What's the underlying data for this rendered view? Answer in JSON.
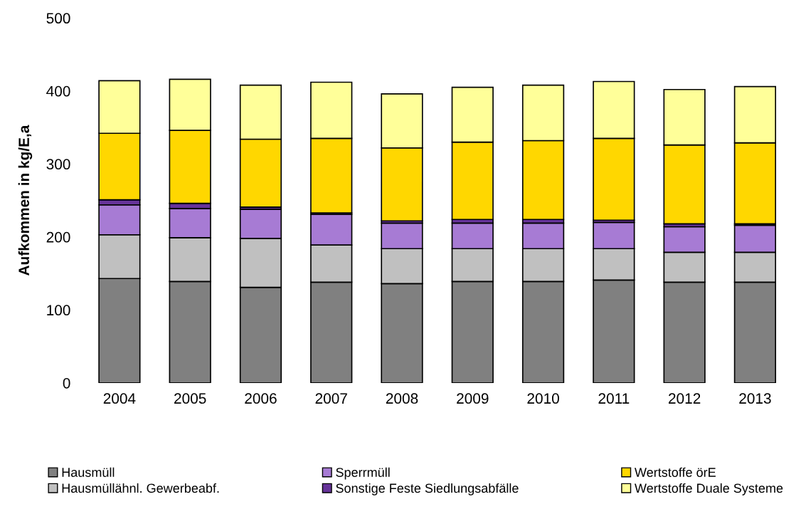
{
  "chart_data": {
    "type": "bar",
    "stacked": true,
    "ylabel": "Aufkommen in kg/E,a",
    "categories": [
      "2004",
      "2005",
      "2006",
      "2007",
      "2008",
      "2009",
      "2010",
      "2011",
      "2012",
      "2013"
    ],
    "series": [
      {
        "name": "Hausmüll",
        "color": "#808080",
        "values": [
          143,
          139,
          131,
          138,
          136,
          139,
          139,
          141,
          138,
          138
        ]
      },
      {
        "name": "Hausmüllähnl. Gewerbeabf.",
        "color": "#c0c0c0",
        "values": [
          60,
          60,
          67,
          51,
          48,
          45,
          45,
          43,
          41,
          41
        ]
      },
      {
        "name": "Sperrmüll",
        "color": "#a77bd4",
        "values": [
          41,
          40,
          40,
          42,
          35,
          35,
          35,
          36,
          35,
          37
        ]
      },
      {
        "name": "Sonstige Feste Siedlungsabfälle",
        "color": "#663399",
        "values": [
          7,
          7,
          3,
          2,
          3,
          5,
          5,
          3,
          4,
          2
        ]
      },
      {
        "name": "Wertstoffe örE",
        "color": "#ffd700",
        "values": [
          91,
          100,
          93,
          102,
          100,
          106,
          108,
          112,
          108,
          111
        ]
      },
      {
        "name": "Wertstoffe Duale Systeme",
        "color": "#ffff99",
        "values": [
          72,
          70,
          74,
          77,
          74,
          75,
          76,
          78,
          76,
          77
        ]
      }
    ],
    "ylim": [
      0,
      500
    ],
    "yticks": [
      0,
      100,
      200,
      300,
      400,
      500
    ],
    "grid": false,
    "legend": "bottom"
  }
}
